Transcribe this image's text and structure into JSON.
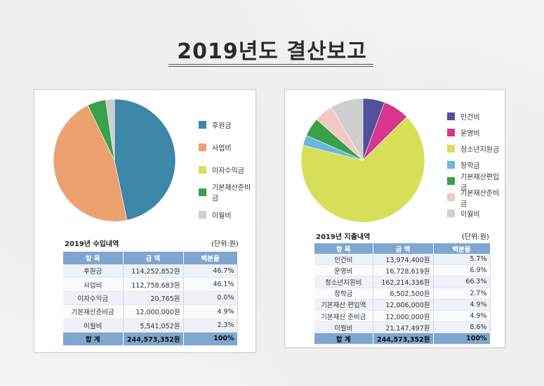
{
  "page": {
    "title": "2019년도 결산보고"
  },
  "income": {
    "caption": "2019년 수입내역",
    "unit": "(단위:원)",
    "headers": [
      "항 목",
      "금 액",
      "백분율"
    ],
    "rows": [
      [
        "후원금",
        "114,252,852원",
        "46.7%"
      ],
      [
        "사업비",
        "112,758,683원",
        "46.1%"
      ],
      [
        "이자수익금",
        "20,765원",
        "0.0%"
      ],
      [
        "기본재산준비금",
        "12,000,000원",
        "4.9%"
      ],
      [
        "이월비",
        "5,541,052원",
        "2.3%"
      ]
    ],
    "total": [
      "합 계",
      "244,573,352원",
      "100%"
    ],
    "legend": [
      {
        "label": "후원금",
        "color": "#3d87a9"
      },
      {
        "label": "사업비",
        "color": "#eca270"
      },
      {
        "label": "이자수익금",
        "color": "#d6df57"
      },
      {
        "label": "기본재산준비금",
        "color": "#3aa04a"
      },
      {
        "label": "이월비",
        "color": "#cfcfcf"
      }
    ]
  },
  "expense": {
    "caption": "2019년 지출내역",
    "unit": "(단위:원)",
    "headers": [
      "항 목",
      "금 액",
      "백분율"
    ],
    "rows": [
      [
        "인건비",
        "13,974,400원",
        "5.7%"
      ],
      [
        "운영비",
        "16,728,619원",
        "6.9%"
      ],
      [
        "청소년지원비",
        "162,214,336원",
        "66.3%"
      ],
      [
        "장학금",
        "6,502,500원",
        "2.7%"
      ],
      [
        "기본재산 편입액",
        "12,006,000원",
        "4.9%"
      ],
      [
        "기본재산 준비금",
        "12,000,000원",
        "4.9%"
      ],
      [
        "이월비",
        "21,147,497원",
        "8.6%"
      ]
    ],
    "total": [
      "합 계",
      "244,573,352원",
      "100%"
    ],
    "legend": [
      {
        "label": "인건비",
        "color": "#54509a"
      },
      {
        "label": "운영비",
        "color": "#d6368e"
      },
      {
        "label": "청소년지원금",
        "color": "#d6df57"
      },
      {
        "label": "장학금",
        "color": "#6ab6de"
      },
      {
        "label": "기본재산편입금",
        "color": "#3aa04a"
      },
      {
        "label": "기본재산준비금",
        "color": "#f2c8c2"
      },
      {
        "label": "이월비",
        "color": "#cfcfcf"
      }
    ]
  },
  "chart_data": [
    {
      "type": "pie",
      "title": "2019년 수입내역",
      "categories": [
        "후원금",
        "사업비",
        "이자수익금",
        "기본재산준비금",
        "이월비"
      ],
      "values": [
        46.7,
        46.1,
        0.0,
        4.9,
        2.3
      ],
      "colors": [
        "#3d87a9",
        "#eca270",
        "#d6df57",
        "#3aa04a",
        "#cfcfcf"
      ],
      "legend_position": "right"
    },
    {
      "type": "pie",
      "title": "2019년 지출내역",
      "categories": [
        "인건비",
        "운영비",
        "청소년지원금",
        "장학금",
        "기본재산편입금",
        "기본재산준비금",
        "이월비"
      ],
      "values": [
        5.7,
        6.9,
        66.3,
        2.7,
        4.9,
        4.9,
        8.6
      ],
      "colors": [
        "#54509a",
        "#d6368e",
        "#d6df57",
        "#6ab6de",
        "#3aa04a",
        "#f2c8c2",
        "#cfcfcf"
      ],
      "legend_position": "right"
    }
  ]
}
